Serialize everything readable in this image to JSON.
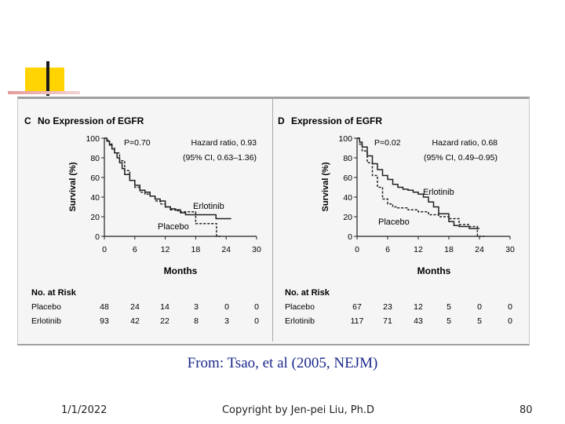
{
  "caption": "From: Tsao, et al (2005, NEJM)",
  "footer": {
    "date": "1/1/2022",
    "copyright": "Copyright by Jen-pei Liu, Ph.D",
    "page": "80"
  },
  "chart_data": [
    {
      "type": "line",
      "panel": "C",
      "title": "No Expression of EGFR",
      "p_value": "P=0.70",
      "hazard_ratio": "Hazard ratio, 0.93",
      "ci": "(95% CI, 0.63–1.36)",
      "xlabel": "Months",
      "ylabel": "Survival (%)",
      "xlim": [
        0,
        30
      ],
      "ylim": [
        0,
        100
      ],
      "xticks": [
        0,
        6,
        12,
        18,
        24,
        30
      ],
      "yticks": [
        0,
        20,
        40,
        60,
        80,
        100
      ],
      "series": [
        {
          "name": "Erlotinib",
          "color": "#222222",
          "x": [
            0,
            0.5,
            1,
            1.5,
            2,
            2.5,
            3,
            3.5,
            4,
            5,
            6,
            7,
            8,
            9,
            10,
            11,
            12,
            13,
            14,
            15,
            16,
            18,
            20,
            22,
            23,
            24,
            25
          ],
          "y": [
            100,
            97,
            93,
            89,
            85,
            80,
            75,
            69,
            63,
            57,
            52,
            47,
            45,
            41,
            38,
            36,
            30,
            28,
            27,
            24,
            22,
            22,
            22,
            18,
            18,
            18,
            18
          ]
        },
        {
          "name": "Placebo",
          "color": "#222222",
          "x": [
            0,
            0.5,
            1,
            1.5,
            2,
            3,
            4,
            5,
            6,
            7,
            8,
            9,
            10,
            11,
            12,
            13,
            14,
            15,
            17,
            18,
            20,
            22,
            22.1,
            23
          ],
          "y": [
            100,
            98,
            94,
            90,
            85,
            77,
            67,
            57,
            50,
            45,
            43,
            41,
            36,
            33,
            30,
            27,
            26,
            25,
            25,
            13,
            13,
            13,
            0,
            0
          ]
        }
      ],
      "at_risk": {
        "title": "No. at Risk",
        "rows": [
          {
            "label": "Placebo",
            "values": [
              "48",
              "24",
              "14",
              "3",
              "0",
              "0"
            ]
          },
          {
            "label": "Erlotinib",
            "values": [
              "93",
              "42",
              "22",
              "8",
              "3",
              "0"
            ]
          }
        ]
      }
    },
    {
      "type": "line",
      "panel": "D",
      "title": "Expression of EGFR",
      "p_value": "P=0.02",
      "hazard_ratio": "Hazard ratio, 0.68",
      "ci": "(95% CI, 0.49–0.95)",
      "xlabel": "Months",
      "ylabel": "Survival (%)",
      "xlim": [
        0,
        30
      ],
      "ylim": [
        0,
        100
      ],
      "xticks": [
        0,
        6,
        12,
        18,
        24,
        30
      ],
      "yticks": [
        0,
        20,
        40,
        60,
        80,
        100
      ],
      "series": [
        {
          "name": "Erlotinib",
          "color": "#222222",
          "x": [
            0,
            0.5,
            1,
            2,
            3,
            4,
            5,
            6,
            7,
            8,
            9,
            10,
            11,
            12,
            13,
            14,
            15,
            16,
            18,
            19,
            20,
            22,
            24
          ],
          "y": [
            100,
            96,
            91,
            82,
            74,
            68,
            62,
            58,
            53,
            50,
            48,
            47,
            45,
            43,
            40,
            35,
            30,
            23,
            15,
            11,
            10,
            8,
            8
          ]
        },
        {
          "name": "Placebo",
          "color": "#222222",
          "x": [
            0,
            0.5,
            1,
            2,
            3,
            4,
            5,
            6,
            7,
            8,
            10,
            12,
            14,
            16,
            18,
            20,
            22,
            23.5,
            23.6,
            25
          ],
          "y": [
            100,
            94,
            87,
            75,
            62,
            50,
            38,
            33,
            30,
            29,
            27,
            25,
            22,
            20,
            18,
            12,
            10,
            10,
            0,
            0
          ]
        }
      ],
      "at_risk": {
        "title": "No. at Risk",
        "rows": [
          {
            "label": "Placebo",
            "values": [
              "67",
              "23",
              "12",
              "5",
              "0",
              "0"
            ]
          },
          {
            "label": "Erlotinib",
            "values": [
              "117",
              "71",
              "43",
              "5",
              "5",
              "0"
            ]
          }
        ]
      }
    }
  ]
}
